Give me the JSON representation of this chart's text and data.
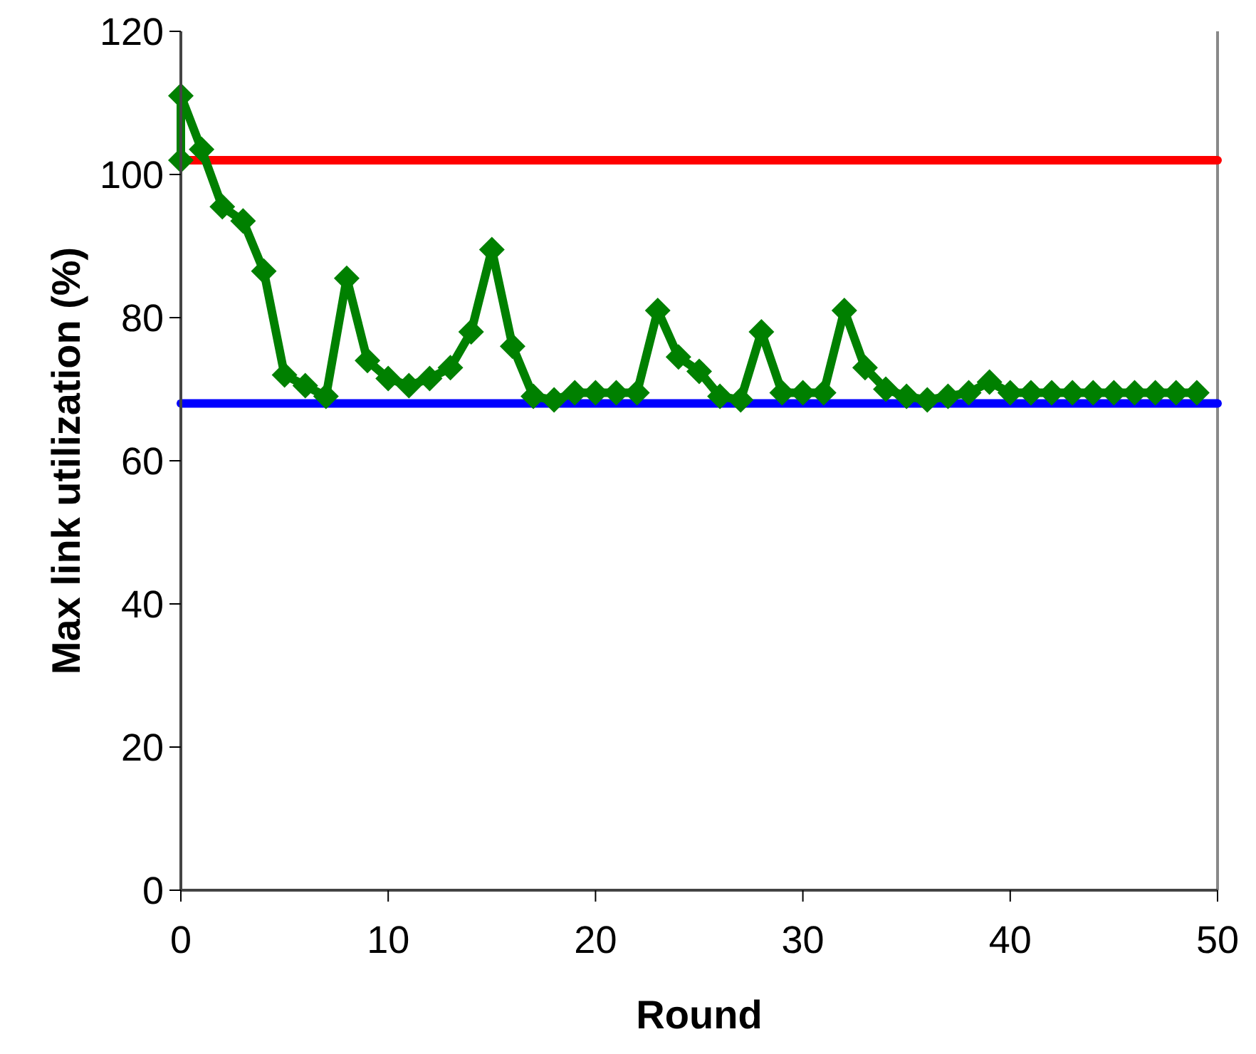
{
  "chart_data": {
    "type": "line",
    "xlabel": "Round",
    "ylabel": "Max link utilization (%)",
    "xlim": [
      0,
      50
    ],
    "xticks": [
      0,
      10,
      20,
      30,
      40,
      50
    ],
    "ylim": [
      0,
      120
    ],
    "yticks": [
      0,
      20,
      40,
      60,
      80,
      100,
      120
    ],
    "grid": false,
    "marker": "diamond",
    "line_style": "solid",
    "series": [
      {
        "color": "#008000",
        "x": [
          0,
          0,
          1,
          2,
          3,
          4,
          5,
          6,
          7,
          8,
          9,
          10,
          11,
          12,
          13,
          14,
          15,
          16,
          17,
          18,
          19,
          20,
          21,
          22,
          23,
          24,
          25,
          26,
          27,
          28,
          29,
          30,
          31,
          32,
          33,
          34,
          35,
          36,
          37,
          38,
          39,
          40,
          41,
          42,
          43,
          44,
          45,
          46,
          47,
          48,
          49
        ],
        "values": [
          102,
          111,
          103.5,
          95.5,
          93.5,
          86.5,
          72,
          70.5,
          69,
          85.5,
          74,
          71.5,
          70.5,
          71.5,
          73,
          78,
          89.5,
          76,
          69,
          68.5,
          69.5,
          69.5,
          69.5,
          69.5,
          81,
          74.5,
          72.5,
          69,
          68.5,
          78,
          69.5,
          69.5,
          69.5,
          81,
          73,
          70,
          69,
          68.5,
          69,
          69.5,
          71,
          69.5,
          69.5,
          69.5,
          69.5,
          69.5,
          69.5,
          69.5,
          69.5,
          69.5,
          69.5
        ]
      }
    ],
    "ref_lines": [
      {
        "axis": "y",
        "value": 102,
        "color": "#ff0000"
      },
      {
        "axis": "y",
        "value": 68,
        "color": "#0000ff"
      }
    ]
  }
}
